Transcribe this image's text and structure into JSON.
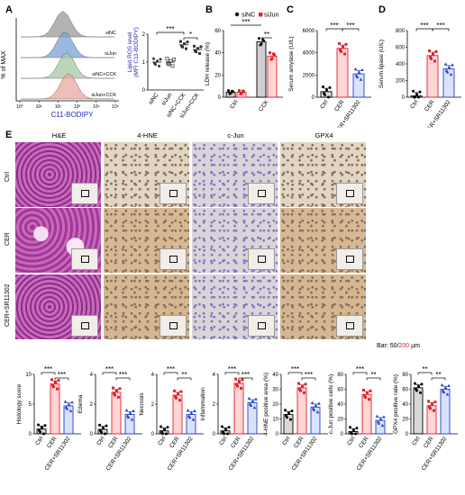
{
  "panels": {
    "A": {
      "letter": "A",
      "flow": {
        "ylabel": "% of MAX",
        "xlabel": "C11-BODIPY",
        "samples": [
          "siNC",
          "siJun",
          "siNC+CCK",
          "siJun+CCK"
        ],
        "sample_colors": [
          "#9a9a9a",
          "#7aa0d6",
          "#a6c8a4",
          "#e8a8a0"
        ],
        "x_ticks": [
          "10⁰",
          "10¹",
          "10²",
          "10³",
          "10⁴",
          "10⁵"
        ]
      },
      "ylabel": "Lipid ROS level",
      "ylabel2": "(MFI C11-BODIPY)",
      "sig": [
        "***",
        "*"
      ]
    },
    "B": {
      "letter": "B",
      "ylabel": "LDH release (%)",
      "legend": [
        "siNC",
        "siJun"
      ],
      "sig": [
        "***",
        "**"
      ]
    },
    "C": {
      "letter": "C",
      "ylabel": "Serum amylase (U/L)",
      "sig": [
        "***",
        "***"
      ]
    },
    "D": {
      "letter": "D",
      "ylabel": "Serum lipase (U/L)",
      "sig": [
        "***",
        "***"
      ]
    },
    "E": {
      "letter": "E",
      "columns": [
        "H&E",
        "4-HNE",
        "c-Jun",
        "GPX4"
      ],
      "rows": [
        "Ctrl",
        "CER",
        "CER+SR11302"
      ],
      "bar_prefix": "Bar: 50/",
      "bar_value_red": "200",
      "bar_suffix": " μm"
    }
  },
  "chart_data": [
    {
      "type": "scatter",
      "title": "",
      "ylabel": "Lipid ROS level (MFI C11-BODIPY)",
      "categories": [
        "siNC",
        "siJun",
        "siNC+CCK",
        "siJun+CCK"
      ],
      "values": [
        1.0,
        1.0,
        1.62,
        1.45
      ],
      "ylim": [
        0,
        2
      ],
      "ytick_labels": [
        "0",
        "1",
        "2"
      ]
    },
    {
      "type": "bar",
      "ylabel": "LDH release (%)",
      "categories": [
        "Ctrl",
        "CCK"
      ],
      "series": [
        {
          "name": "siNC",
          "values": [
            4.5,
            50
          ]
        },
        {
          "name": "siJun",
          "values": [
            4.5,
            37
          ]
        }
      ],
      "ylim": [
        0,
        60
      ],
      "ytick_labels": [
        "0",
        "20",
        "40",
        "60"
      ]
    },
    {
      "type": "bar",
      "ylabel": "Serum amylase (U/L)",
      "categories": [
        "Ctrl",
        "CER",
        "CER+SR11302"
      ],
      "values": [
        500,
        4400,
        2100
      ],
      "ylim": [
        0,
        6000
      ],
      "ytick_labels": [
        "0",
        "2000",
        "4000",
        "6000"
      ]
    },
    {
      "type": "bar",
      "ylabel": "Serum lipase (U/L)",
      "categories": [
        "Ctrl",
        "CER",
        "CER+SR11302"
      ],
      "values": [
        15,
        500,
        340
      ],
      "ylim": [
        0,
        800
      ],
      "ytick_labels": [
        "0",
        "200",
        "400",
        "600",
        "800"
      ]
    },
    {
      "type": "bar",
      "ylabel": "Histology score",
      "categories": [
        "Ctrl",
        "CER",
        "CER+SR11302"
      ],
      "values": [
        0.8,
        8.4,
        4.7
      ],
      "ylim": [
        0,
        10
      ],
      "ytick_labels": [
        "0",
        "5",
        "10"
      ],
      "sig": [
        "***",
        "***"
      ]
    },
    {
      "type": "bar",
      "ylabel": "Edema",
      "categories": [
        "Ctrl",
        "CER",
        "CER+SR11302"
      ],
      "values": [
        0.3,
        2.8,
        1.3
      ],
      "ylim": [
        0,
        4
      ],
      "ytick_labels": [
        "0",
        "2",
        "4"
      ],
      "sig": [
        "***",
        "***"
      ]
    },
    {
      "type": "bar",
      "ylabel": "Necrosis",
      "categories": [
        "Ctrl",
        "CER",
        "CER+SR11302"
      ],
      "values": [
        0.2,
        2.6,
        1.3
      ],
      "ylim": [
        0,
        4
      ],
      "ytick_labels": [
        "0",
        "2",
        "4"
      ],
      "sig": [
        "***",
        "**"
      ]
    },
    {
      "type": "bar",
      "ylabel": "Inflammation",
      "categories": [
        "Ctrl",
        "CER",
        "CER+SR11302"
      ],
      "values": [
        0.2,
        3.4,
        2.1
      ],
      "ylim": [
        0,
        4
      ],
      "ytick_labels": [
        "0",
        "2",
        "4"
      ],
      "sig": [
        "***",
        "***"
      ]
    },
    {
      "type": "bar",
      "ylabel": "4-HNE positive area (%)",
      "categories": [
        "Ctrl",
        "CER",
        "CER+SR11302"
      ],
      "values": [
        13,
        31,
        18
      ],
      "ylim": [
        0,
        40
      ],
      "ytick_labels": [
        "0",
        "10",
        "20",
        "30",
        "40"
      ],
      "sig": [
        "***",
        "***"
      ]
    },
    {
      "type": "bar",
      "ylabel": "c-Jun positive cells (%)",
      "categories": [
        "Ctrl",
        "CER",
        "CER+SR11302"
      ],
      "values": [
        3,
        53,
        18
      ],
      "ylim": [
        0,
        80
      ],
      "ytick_labels": [
        "0",
        "20",
        "40",
        "60",
        "80"
      ],
      "sig": [
        "***",
        "**"
      ]
    },
    {
      "type": "bar",
      "ylabel": "GPX4 positive rate (%)",
      "categories": [
        "Ctrl",
        "CER",
        "CER+SR11302"
      ],
      "values": [
        62,
        38,
        60
      ],
      "ylim": [
        0,
        80
      ],
      "ytick_labels": [
        "0",
        "20",
        "40",
        "60",
        "80"
      ],
      "sig": [
        "**",
        "**"
      ]
    }
  ],
  "styles": {
    "ctrl_color": "#000000",
    "cer_color": "#e8202a",
    "sr_color": "#1e3fd0",
    "sinc_color": "#000000",
    "sijun_color": "#e8202a",
    "fill_ctrl": "#d9d9d9",
    "fill_cer": "#ffd6d6",
    "fill_sr": "#dbe2ff",
    "he_color": "#b24fa6",
    "ihc_color": "#d9c5a5"
  }
}
